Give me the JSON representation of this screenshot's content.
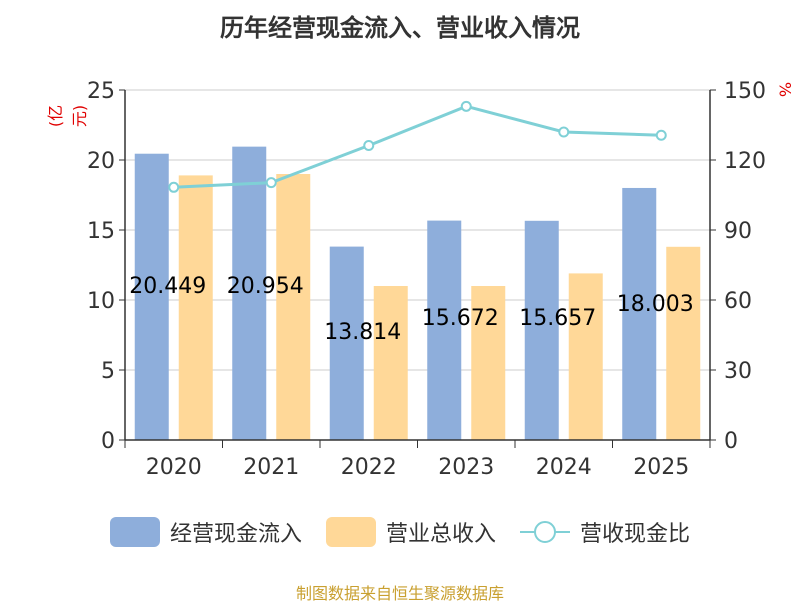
{
  "title": "历年经营现金流入、营业收入情况",
  "left_unit": "(亿元)",
  "right_unit": "%",
  "footer": "制图数据来自恒生聚源数据库",
  "legend": {
    "bar1": "经营现金流入",
    "bar2": "营业总收入",
    "line": "营收现金比"
  },
  "colors": {
    "bar1": "#8eaedb",
    "bar2": "#ffd898",
    "line": "#7fd0d6",
    "unit": "#e00000"
  },
  "chart_data": {
    "type": "bar",
    "categories": [
      "2020",
      "2021",
      "2022",
      "2023",
      "2024",
      "2025"
    ],
    "series": [
      {
        "name": "经营现金流入",
        "type": "bar",
        "values": [
          20.449,
          20.954,
          13.814,
          15.672,
          15.657,
          18.003
        ],
        "labels": [
          "20.449",
          "20.954",
          "13.814",
          "15.672",
          "15.657",
          "18.003"
        ]
      },
      {
        "name": "营业总收入",
        "type": "bar",
        "values": [
          18.9,
          19.0,
          11.0,
          11.0,
          11.9,
          13.8
        ]
      },
      {
        "name": "营收现金比",
        "type": "line",
        "axis": "right",
        "values": [
          108.3,
          110.3,
          126.2,
          143.0,
          132.0,
          130.6
        ]
      }
    ],
    "left_axis": {
      "ylim": [
        0,
        25
      ],
      "ticks": [
        0,
        5,
        10,
        15,
        20,
        25
      ]
    },
    "right_axis": {
      "ylim": [
        0,
        150
      ],
      "ticks": [
        0,
        30,
        60,
        90,
        120,
        150
      ]
    },
    "grid": true,
    "legend_position": "bottom"
  }
}
